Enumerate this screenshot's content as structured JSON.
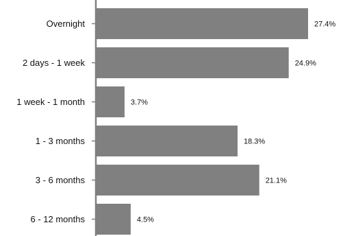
{
  "chart_data": {
    "type": "bar",
    "orientation": "horizontal",
    "categories": [
      "Overnight",
      "2 days - 1 week",
      "1 week - 1 month",
      "1 - 3 months",
      "3 - 6 months",
      "6 - 12 months"
    ],
    "values": [
      27.4,
      24.9,
      3.7,
      18.3,
      21.1,
      4.5
    ],
    "value_labels": [
      "27.4%",
      "24.9%",
      "3.7%",
      "18.3%",
      "21.1%",
      "4.5%"
    ],
    "title": "",
    "xlabel": "",
    "ylabel": "",
    "xlim": [
      0,
      30
    ],
    "grid": false,
    "legend": "none",
    "bar_color": "#808080",
    "axis_color": "#808080"
  }
}
